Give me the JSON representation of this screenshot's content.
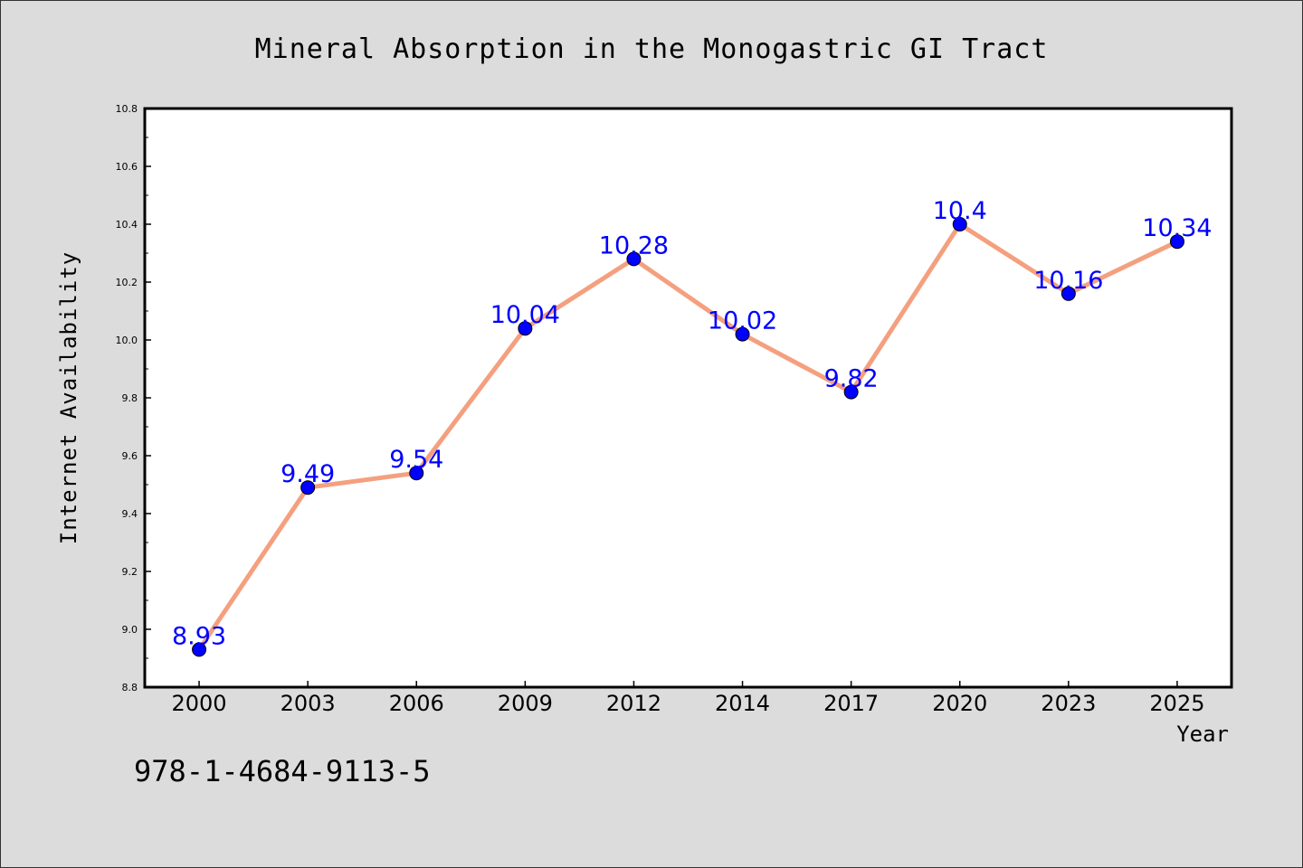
{
  "chart_data": {
    "type": "line",
    "title": "Mineral Absorption in the Monogastric GI Tract",
    "xlabel": "Year",
    "ylabel": "Internet Availability",
    "categories": [
      "2000",
      "2003",
      "2006",
      "2009",
      "2012",
      "2014",
      "2017",
      "2020",
      "2023",
      "2025"
    ],
    "values": [
      8.93,
      9.49,
      9.54,
      10.04,
      10.28,
      10.02,
      9.82,
      10.4,
      10.16,
      10.34
    ],
    "ylim": [
      8.8,
      10.8
    ],
    "yticks": [
      8.8,
      9.0,
      9.2,
      9.4,
      9.6,
      9.8,
      10.0,
      10.2,
      10.4,
      10.6,
      10.8
    ],
    "grid": false,
    "legend": "none",
    "colors": {
      "line": "#f4a07f",
      "marker": "#0000ff",
      "label": "#0000ff",
      "background": "#dcdcdc",
      "plot_bg": "#ffffff"
    }
  },
  "footer_text": "978-1-4684-9113-5"
}
